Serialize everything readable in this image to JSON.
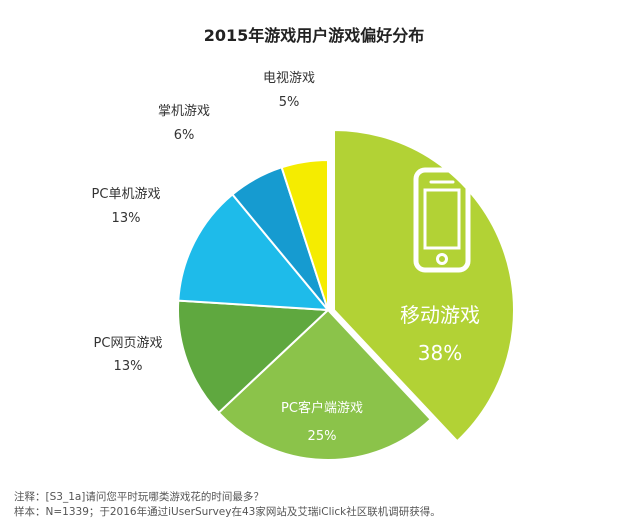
{
  "chart_data": {
    "type": "pie",
    "title": "2015年游戏用户游戏偏好分布",
    "slices": [
      {
        "label": "移动游戏",
        "value": 38,
        "display": "38%",
        "color": "#b2d235",
        "exploded": true
      },
      {
        "label": "PC客户端游戏",
        "value": 25,
        "display": "25%",
        "color": "#8bc34a"
      },
      {
        "label": "PC网页游戏",
        "value": 13,
        "display": "13%",
        "color": "#5fa83f"
      },
      {
        "label": "PC单机游戏",
        "value": 13,
        "display": "13%",
        "color": "#1ebbea"
      },
      {
        "label": "掌机游戏",
        "value": 6,
        "display": "6%",
        "color": "#169bd0"
      },
      {
        "label": "电视游戏",
        "value": 5,
        "display": "5%",
        "color": "#f5ec00"
      }
    ],
    "icon": "smartphone-icon"
  },
  "notes": {
    "line1": "注释：[S3_1a]请问您平时玩哪类游戏花的时间最多？",
    "line2": "样本：N=1339；于2016年通过iUserSurvey在43家网站及艾瑞iClick社区联机调研获得。"
  }
}
